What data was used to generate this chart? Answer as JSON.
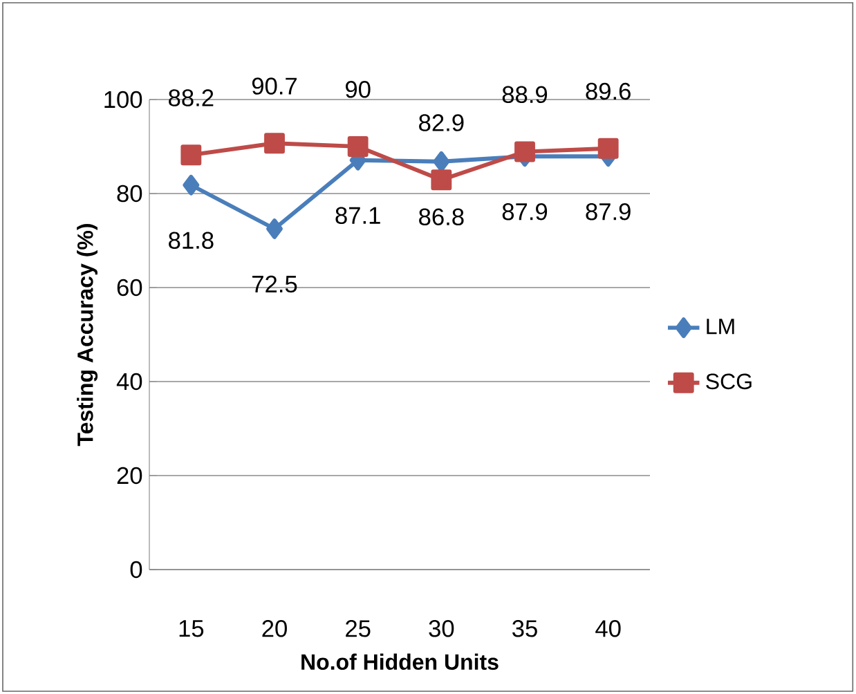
{
  "chart_data": {
    "type": "line",
    "xlabel": "No.of Hidden Units",
    "ylabel": "Testing Accuracy (%)",
    "categories": [
      "15",
      "20",
      "25",
      "30",
      "35",
      "40"
    ],
    "series": [
      {
        "name": "LM",
        "color": "#4a7ebb",
        "marker": "diamond",
        "values": [
          81.8,
          72.5,
          87.1,
          86.8,
          87.9,
          87.9
        ],
        "value_labels": [
          "81.8",
          "72.5",
          "87.1",
          "86.8",
          "87.9",
          "87.9"
        ]
      },
      {
        "name": "SCG",
        "color": "#be4b48",
        "marker": "square",
        "values": [
          88.2,
          90.7,
          90,
          82.9,
          88.9,
          89.6
        ],
        "value_labels": [
          "88.2",
          "90.7",
          "90",
          "82.9",
          "88.9",
          "89.6"
        ]
      }
    ],
    "ylim": [
      0,
      100
    ],
    "yticks": [
      0,
      20,
      40,
      60,
      80,
      100
    ],
    "grid": "y",
    "legend": "right",
    "line_style": "solid"
  }
}
